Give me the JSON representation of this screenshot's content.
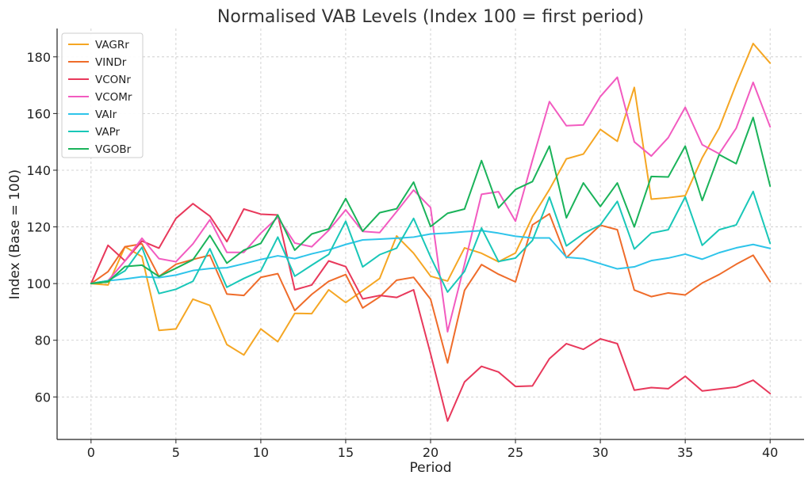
{
  "chart_data": {
    "type": "line",
    "title": "Normalised VAB Levels (Index 100 = first period)",
    "xlabel": "Period",
    "ylabel": "Index (Base = 100)",
    "xlim": [
      -2,
      42
    ],
    "ylim": [
      45,
      190
    ],
    "xticks": [
      0,
      5,
      10,
      15,
      20,
      25,
      30,
      35,
      40
    ],
    "yticks": [
      60,
      80,
      100,
      120,
      140,
      160,
      180
    ],
    "grid": true,
    "legend_position": "top-left",
    "x": [
      0,
      1,
      2,
      3,
      4,
      5,
      6,
      7,
      8,
      9,
      10,
      11,
      12,
      13,
      14,
      15,
      16,
      17,
      18,
      19,
      20,
      21,
      22,
      23,
      24,
      25,
      26,
      27,
      28,
      29,
      30,
      31,
      32,
      33,
      34,
      35,
      36,
      37,
      38,
      39,
      40
    ],
    "series": [
      {
        "name": "VAGRr",
        "color": "#f5a623",
        "values": [
          100,
          99.5,
          113,
          109.5,
          83.5,
          84,
          94.5,
          92.3,
          78.5,
          74.8,
          84,
          79.5,
          89.5,
          89.4,
          97.8,
          93.3,
          97.5,
          101.8,
          116.8,
          110.7,
          102.6,
          100.9,
          112.6,
          110.7,
          107.7,
          110.8,
          123.5,
          133.2,
          144,
          145.7,
          154.4,
          150.2,
          169.2,
          129.8,
          130.3,
          131,
          144.4,
          154.9,
          170.3,
          184.7,
          177.8
        ]
      },
      {
        "name": "VINDr",
        "color": "#ef6c2a",
        "values": [
          100,
          104.2,
          113,
          114,
          102.5,
          106.8,
          108.5,
          110,
          96.3,
          95.8,
          102.2,
          103.5,
          90.5,
          96.2,
          100.8,
          103.2,
          91.4,
          95.3,
          101.2,
          102.2,
          94.5,
          72,
          97.6,
          106.7,
          103.3,
          100.6,
          120.7,
          124.6,
          109.1,
          115,
          120.6,
          119,
          97.7,
          95.4,
          96.7,
          96,
          100.2,
          103.2,
          106.8,
          110,
          100.7
        ]
      },
      {
        "name": "VCONr",
        "color": "#e8385b",
        "values": [
          100,
          113.5,
          108,
          115,
          112.5,
          123,
          128.2,
          123.8,
          114.8,
          126.3,
          124.5,
          124.2,
          97.8,
          99.5,
          108,
          106,
          94.6,
          95.8,
          95.1,
          97.8,
          75.2,
          51.5,
          65.3,
          70.8,
          68.8,
          63.7,
          63.9,
          73.5,
          78.8,
          76.8,
          80.5,
          78.8,
          62.4,
          63.3,
          62.9,
          67.3,
          62.1,
          62.8,
          63.5,
          65.9,
          61.2
        ]
      },
      {
        "name": "VCOMr",
        "color": "#f25bc0",
        "values": [
          100,
          101,
          108,
          116,
          108.8,
          107.7,
          114,
          122.5,
          111,
          111,
          117.8,
          123.4,
          114.3,
          113,
          118.8,
          126,
          118.4,
          118,
          125.4,
          133,
          126.8,
          83,
          106.8,
          131.5,
          132.4,
          122,
          143.5,
          164.2,
          155.7,
          156,
          166,
          172.8,
          150,
          145,
          151.5,
          162.2,
          149,
          145.8,
          154.8,
          171,
          155.3
        ]
      },
      {
        "name": "VAIr",
        "color": "#2ec4ea",
        "values": [
          100,
          101,
          101.6,
          102.4,
          102.1,
          103,
          104.6,
          105.3,
          105.6,
          107,
          108.5,
          109.8,
          108.8,
          110.5,
          111.9,
          113.8,
          115.4,
          115.7,
          116,
          116.4,
          117.5,
          117.8,
          118.3,
          118.7,
          117.8,
          116.7,
          116.1,
          116.1,
          109.3,
          108.8,
          107,
          105.2,
          105.9,
          108.1,
          109,
          110.4,
          108.6,
          110.9,
          112.6,
          113.8,
          112.4
        ]
      },
      {
        "name": "VAPr",
        "color": "#19c7b8",
        "values": [
          100,
          101,
          104.5,
          112.8,
          96.5,
          98,
          100.8,
          112.3,
          98.7,
          101.8,
          104.5,
          116.4,
          102.6,
          106.5,
          110.3,
          122,
          105.9,
          110.2,
          112.5,
          123,
          109.4,
          97,
          104.3,
          119.6,
          107.8,
          109,
          115.2,
          130.5,
          113.3,
          117.6,
          120.7,
          129,
          112.2,
          117.8,
          119,
          130.6,
          113.5,
          119,
          120.7,
          132.5,
          114.2
        ]
      },
      {
        "name": "VGOBr",
        "color": "#1ab35a",
        "values": [
          100,
          100.6,
          106,
          106.5,
          102.5,
          105.4,
          108.4,
          117,
          107.2,
          111.8,
          114.2,
          124.2,
          111.8,
          117.5,
          119.3,
          130,
          118.5,
          125,
          126.4,
          135.8,
          120.1,
          124.8,
          126.3,
          143.4,
          126.7,
          133.2,
          136,
          148.5,
          123.2,
          135.5,
          127.2,
          135.5,
          120,
          137.8,
          137.6,
          148.5,
          129.3,
          145.5,
          142.3,
          158.6,
          134.4
        ]
      }
    ]
  }
}
